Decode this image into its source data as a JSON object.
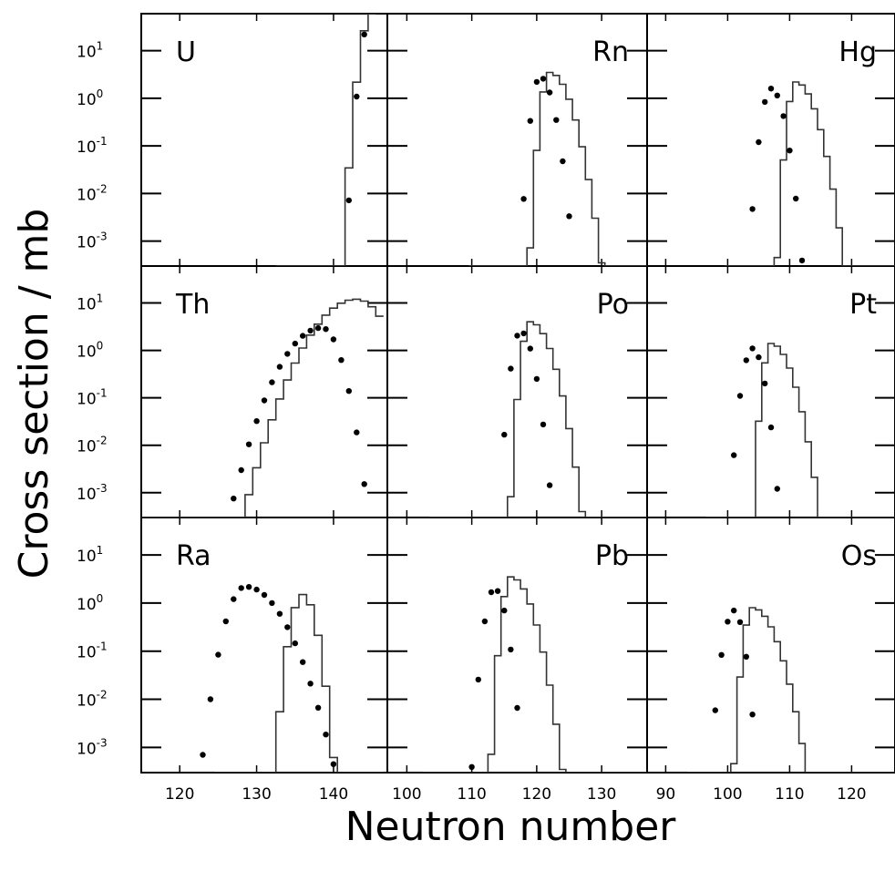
{
  "figure": {
    "ylabel": "Cross section / mb",
    "xlabel": "Neutron number"
  },
  "chart_data": {
    "type": "scatter",
    "grid": false,
    "y_scale": "log",
    "ylim": [
      0.0003,
      60
    ],
    "ytick_values": [
      0.001,
      0.01,
      0.1,
      1,
      10
    ],
    "ytick_labels": [
      {
        "base": "10",
        "exp": "-3"
      },
      {
        "base": "10",
        "exp": "-2"
      },
      {
        "base": "10",
        "exp": "-1"
      },
      {
        "base": "10",
        "exp": "0"
      },
      {
        "base": "10",
        "exp": "1"
      }
    ],
    "columns": [
      {
        "xlim": [
          115,
          147
        ],
        "ticks": [
          120,
          130,
          140
        ],
        "tick_labels": [
          "120",
          "130",
          "140"
        ]
      },
      {
        "xlim": [
          97,
          137
        ],
        "ticks": [
          100,
          110,
          120,
          130
        ],
        "tick_labels": [
          "100",
          "110",
          "120",
          "130"
        ]
      },
      {
        "xlim": [
          87,
          127
        ],
        "ticks": [
          90,
          100,
          110,
          120
        ],
        "tick_labels": [
          "90",
          "100",
          "110",
          "120"
        ]
      }
    ],
    "panels": [
      {
        "label": "U",
        "row": 0,
        "col": 0,
        "label_side": "left",
        "curve": {
          "mu": 145,
          "A": 60,
          "sl": 0.6,
          "sr": 0.6,
          "x_from": 133,
          "x_to": 145
        },
        "points": {
          "mu": 145,
          "A": 60,
          "sl": 0.66,
          "sr": 0.66,
          "x_from": 134,
          "x_to": 144
        }
      },
      {
        "label": "Rn",
        "row": 0,
        "col": 1,
        "label_side": "right",
        "curve": {
          "mu": 122,
          "A": 3.5,
          "sl": 0.64,
          "sr": 0.25,
          "x_from": 110,
          "x_to": 137
        },
        "points": {
          "mu": 120.5,
          "A": 2.8,
          "sl": 0.64,
          "sr": 0.38,
          "x_from": 112,
          "x_to": 135
        }
      },
      {
        "label": "Hg",
        "row": 0,
        "col": 2,
        "label_side": "right",
        "curve": {
          "mu": 111,
          "A": 2.2,
          "sl": 0.64,
          "sr": 0.25,
          "x_from": 100,
          "x_to": 127
        },
        "points": {
          "mu": 107,
          "A": 1.6,
          "sl": 0.53,
          "sr": 0.38,
          "x_from": 99,
          "x_to": 116
        }
      },
      {
        "label": "Th",
        "row": 1,
        "col": 0,
        "label_side": "left",
        "curve": {
          "mu": 143,
          "A": 12,
          "sl": 0.145,
          "sr": 0.2,
          "x_from": 115,
          "x_to": 146
        },
        "points": {
          "mu": 138.5,
          "A": 3.0,
          "sl": 0.165,
          "sr": 0.33,
          "x_from": 124,
          "x_to": 146
        }
      },
      {
        "label": "Po",
        "row": 1,
        "col": 1,
        "label_side": "right",
        "curve": {
          "mu": 119,
          "A": 4.0,
          "sl": 0.64,
          "sr": 0.25,
          "x_from": 104,
          "x_to": 137
        },
        "points": {
          "mu": 117.5,
          "A": 2.5,
          "sl": 0.59,
          "sr": 0.4,
          "x_from": 108,
          "x_to": 129
        }
      },
      {
        "label": "Pt",
        "row": 1,
        "col": 2,
        "label_side": "right",
        "curve": {
          "mu": 107,
          "A": 1.4,
          "sl": 0.64,
          "sr": 0.24,
          "x_from": 97,
          "x_to": 127
        },
        "points": {
          "mu": 104,
          "A": 1.1,
          "sl": 0.5,
          "sr": 0.43,
          "x_from": 96,
          "x_to": 114
        }
      },
      {
        "label": "Ra",
        "row": 2,
        "col": 0,
        "label_side": "left",
        "curve": {
          "mu": 136,
          "A": 1.5,
          "sl": 0.52,
          "sr": 0.46,
          "x_from": 125,
          "x_to": 146
        },
        "points": {
          "mu": 128.5,
          "A": 2.2,
          "sl": 0.34,
          "sr": 0.167,
          "x_from": 120,
          "x_to": 144
        }
      },
      {
        "label": "Pb",
        "row": 2,
        "col": 1,
        "label_side": "right",
        "curve": {
          "mu": 116,
          "A": 3.5,
          "sl": 0.64,
          "sr": 0.25,
          "x_from": 103,
          "x_to": 137
        },
        "points": {
          "mu": 113.5,
          "A": 2.0,
          "sl": 0.55,
          "sr": 0.45,
          "x_from": 105,
          "x_to": 124
        }
      },
      {
        "label": "Os",
        "row": 2,
        "col": 2,
        "label_side": "right",
        "curve": {
          "mu": 104,
          "A": 0.8,
          "sl": 0.6,
          "sr": 0.21,
          "x_from": 94,
          "x_to": 127
        },
        "points": {
          "mu": 101,
          "A": 0.7,
          "sl": 0.48,
          "sr": 0.49,
          "x_from": 95,
          "x_to": 114
        }
      }
    ]
  }
}
